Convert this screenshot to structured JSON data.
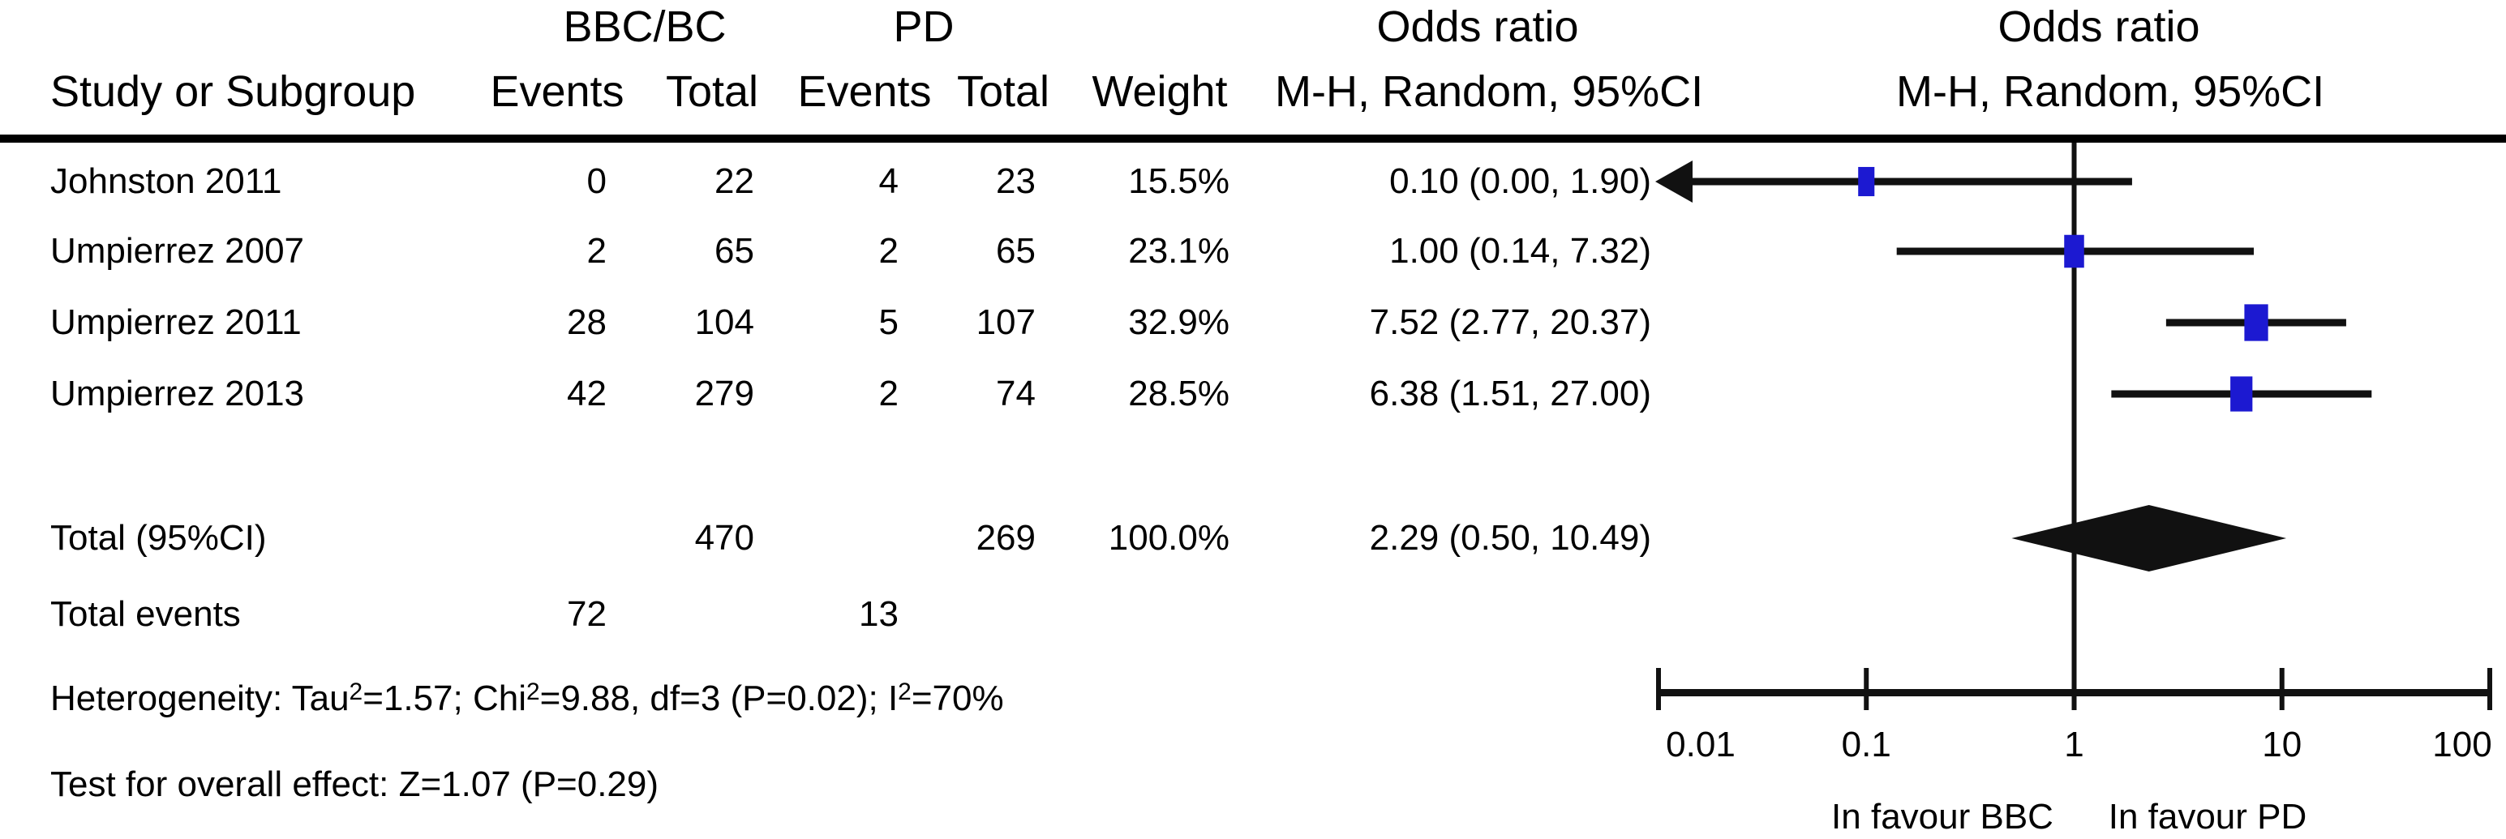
{
  "header": {
    "group1": "BBC/BC",
    "group2": "PD",
    "odds_ratio_left": "Odds ratio",
    "odds_ratio_right": "Odds ratio",
    "study_col": "Study or Subgroup",
    "events_col_1": "Events",
    "total_col_1": "Total",
    "events_col_2": "Events",
    "total_col_2": "Total",
    "weight_col": "Weight",
    "mh_left": "M-H, Random, 95%CI",
    "mh_right": "M-H, Random, 95%CI"
  },
  "chart_data": {
    "type": "scatter",
    "subtype": "forest_plot",
    "x_scale": "log",
    "axis": {
      "min": 0.01,
      "max": 100,
      "ticks": [
        0.01,
        0.1,
        1,
        10,
        100
      ],
      "tick_labels": [
        "0.01",
        "0.1",
        "1",
        "10",
        "100"
      ],
      "reference_line": 1
    },
    "footer_labels": {
      "left": "In favour BBC",
      "right": "In favour PD"
    },
    "marker_color": "#1c19d1",
    "line_color": "#111111",
    "studies": [
      {
        "name": "Johnston 2011",
        "events1": 0,
        "total1": 22,
        "events2": 4,
        "total2": 23,
        "weight": "15.5%",
        "weight_value": 15.5,
        "or_ci": "0.10 (0.00, 1.90)",
        "or": 0.1,
        "ci_low": 0.0,
        "ci_high": 1.9,
        "ci_low_clipped": true
      },
      {
        "name": "Umpierrez 2007",
        "events1": 2,
        "total1": 65,
        "events2": 2,
        "total2": 65,
        "weight": "23.1%",
        "weight_value": 23.1,
        "or_ci": "1.00 (0.14, 7.32)",
        "or": 1.0,
        "ci_low": 0.14,
        "ci_high": 7.32,
        "ci_low_clipped": false
      },
      {
        "name": "Umpierrez 2011",
        "events1": 28,
        "total1": 104,
        "events2": 5,
        "total2": 107,
        "weight": "32.9%",
        "weight_value": 32.9,
        "or_ci": "7.52 (2.77, 20.37)",
        "or": 7.52,
        "ci_low": 2.77,
        "ci_high": 20.37,
        "ci_low_clipped": false
      },
      {
        "name": "Umpierrez 2013",
        "events1": 42,
        "total1": 279,
        "events2": 2,
        "total2": 74,
        "weight": "28.5%",
        "weight_value": 28.5,
        "or_ci": "6.38 (1.51, 27.00)",
        "or": 6.38,
        "ci_low": 1.51,
        "ci_high": 27.0,
        "ci_low_clipped": false
      }
    ],
    "total": {
      "label": "Total (95%CI)",
      "total1": 470,
      "total2": 269,
      "weight": "100.0%",
      "or_ci": "2.29 (0.50, 10.49)",
      "or": 2.29,
      "ci_low": 0.5,
      "ci_high": 10.49
    },
    "total_events": {
      "label": "Total events",
      "events1": 72,
      "events2": 13
    },
    "heterogeneity_segments": [
      {
        "text": "Heterogeneity: Tau"
      },
      {
        "sup": "2"
      },
      {
        "text": "=1.57; Chi"
      },
      {
        "sup": "2"
      },
      {
        "text": "=9.88, df=3 (P=0.02); I"
      },
      {
        "sup": "2"
      },
      {
        "text": "=70%"
      }
    ],
    "overall_effect": "Test for overall effect: Z=1.07 (P=0.29)"
  }
}
